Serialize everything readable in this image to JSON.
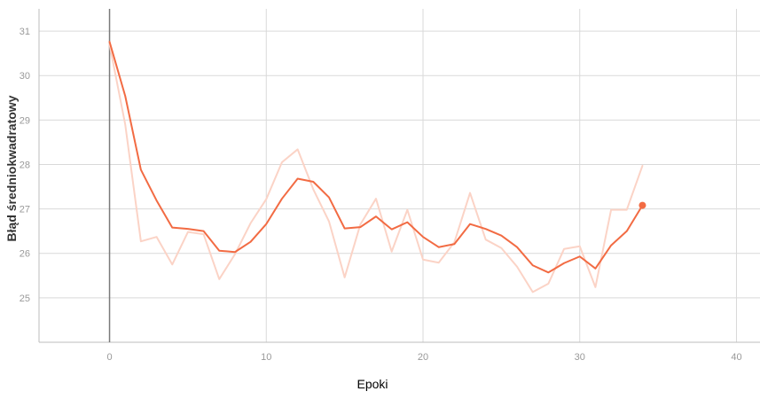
{
  "chart_data": {
    "type": "line",
    "xlabel": "Epoki",
    "ylabel": "Błąd średniokwadratowy",
    "xlim": [
      -4.5,
      41.5
    ],
    "ylim": [
      24.0,
      31.5
    ],
    "x_ticks": [
      0,
      10,
      20,
      30,
      40
    ],
    "y_ticks": [
      25,
      26,
      27,
      28,
      29,
      30,
      31
    ],
    "grid": true,
    "series": [
      {
        "role": "raw",
        "color": "#FBD3C6",
        "x": [
          0,
          1,
          2,
          3,
          4,
          5,
          6,
          7,
          8,
          9,
          10,
          11,
          12,
          13,
          14,
          15,
          16,
          17,
          18,
          19,
          20,
          21,
          22,
          23,
          24,
          25,
          26,
          27,
          28,
          29,
          30,
          31,
          32,
          33,
          34
        ],
        "y": [
          30.7,
          28.9,
          26.27,
          26.37,
          25.75,
          26.48,
          26.43,
          25.42,
          25.98,
          26.68,
          27.22,
          28.05,
          28.34,
          27.44,
          26.72,
          25.46,
          26.65,
          27.23,
          26.04,
          26.98,
          25.86,
          25.79,
          26.25,
          27.36,
          26.31,
          26.12,
          25.7,
          25.13,
          25.32,
          26.1,
          26.16,
          25.24,
          26.98,
          26.98,
          27.97
        ]
      },
      {
        "role": "smoothed",
        "color": "#F26B43",
        "x": [
          0,
          1,
          2,
          3,
          4,
          5,
          6,
          7,
          8,
          9,
          10,
          11,
          12,
          13,
          14,
          15,
          16,
          17,
          18,
          19,
          20,
          21,
          22,
          23,
          24,
          25,
          26,
          27,
          28,
          29,
          30,
          31,
          32,
          33,
          34
        ],
        "y": [
          30.76,
          29.54,
          27.88,
          27.19,
          26.58,
          26.55,
          26.5,
          26.06,
          26.03,
          26.26,
          26.66,
          27.23,
          27.68,
          27.61,
          27.26,
          26.56,
          26.59,
          26.83,
          26.54,
          26.7,
          26.37,
          26.14,
          26.21,
          26.66,
          26.55,
          26.4,
          26.14,
          25.73,
          25.57,
          25.78,
          25.93,
          25.66,
          26.18,
          26.5,
          27.08
        ]
      }
    ]
  }
}
